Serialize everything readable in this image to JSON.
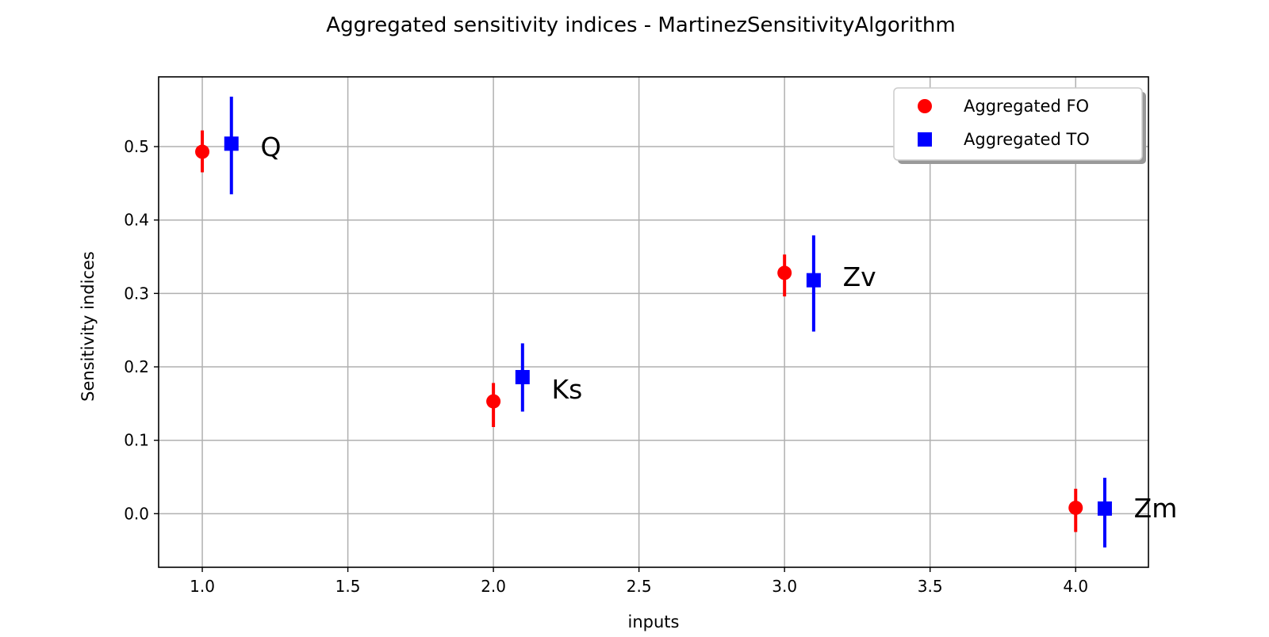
{
  "chart_data": {
    "type": "scatter",
    "title": "Aggregated sensitivity indices - MartinezSensitivityAlgorithm",
    "xlabel": "inputs",
    "ylabel": "Sensitivity indices",
    "xlim": [
      0.85,
      4.25
    ],
    "ylim": [
      -0.073,
      0.595
    ],
    "xticks": [
      "1.0",
      "1.5",
      "2.0",
      "2.5",
      "3.0",
      "3.5",
      "4.0"
    ],
    "xtick_values": [
      1.0,
      1.5,
      2.0,
      2.5,
      3.0,
      3.5,
      4.0
    ],
    "yticks": [
      "0.0",
      "0.1",
      "0.2",
      "0.3",
      "0.4",
      "0.5"
    ],
    "ytick_values": [
      0.0,
      0.1,
      0.2,
      0.3,
      0.4,
      0.5
    ],
    "grid": true,
    "legend_position": "top-right",
    "series": [
      {
        "name": "Aggregated FO",
        "color": "#ff0000",
        "marker": "circle",
        "x": [
          1.0,
          2.0,
          3.0,
          4.0
        ],
        "y": [
          0.493,
          0.153,
          0.328,
          0.008
        ],
        "err_low": [
          0.465,
          0.118,
          0.296,
          -0.025
        ],
        "err_high": [
          0.522,
          0.178,
          0.353,
          0.034
        ]
      },
      {
        "name": "Aggregated TO",
        "color": "#0000ff",
        "marker": "square",
        "x": [
          1.1,
          2.1,
          3.1,
          4.1
        ],
        "y": [
          0.504,
          0.186,
          0.318,
          0.007
        ],
        "err_low": [
          0.435,
          0.139,
          0.248,
          -0.046
        ],
        "err_high": [
          0.568,
          0.232,
          0.379,
          0.049
        ]
      }
    ],
    "point_labels": [
      {
        "text": "Q",
        "x": 1.2,
        "y": 0.5
      },
      {
        "text": "Ks",
        "x": 2.2,
        "y": 0.17
      },
      {
        "text": "Zv",
        "x": 3.2,
        "y": 0.323
      },
      {
        "text": "Zm",
        "x": 4.2,
        "y": 0.008
      }
    ]
  }
}
